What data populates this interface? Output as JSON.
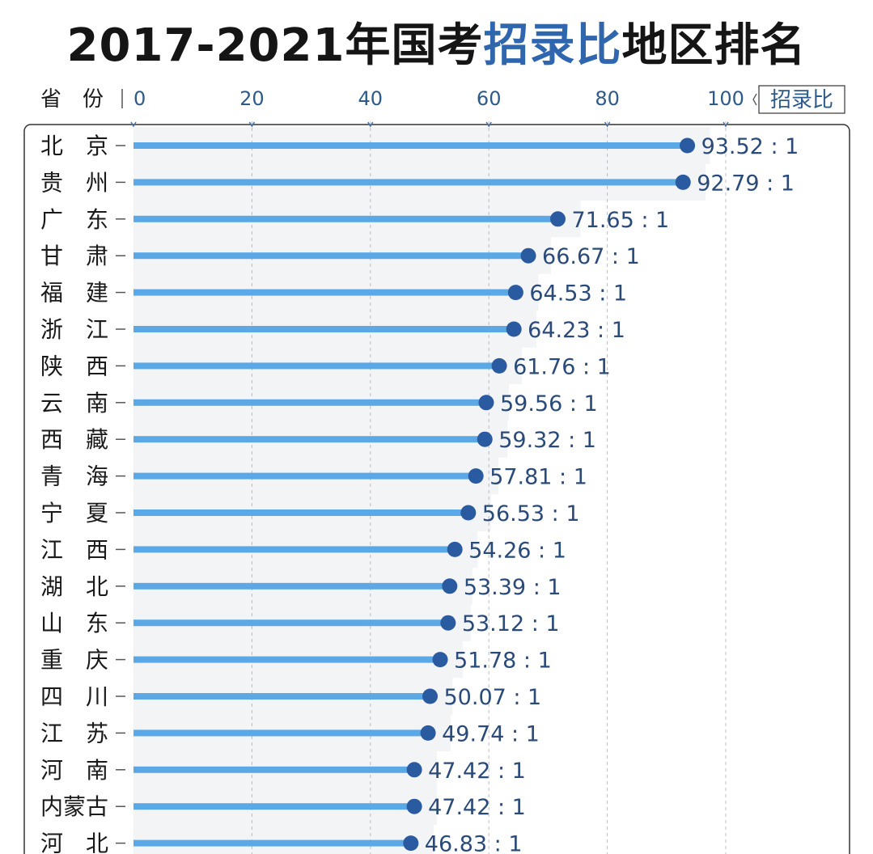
{
  "title": {
    "part1": "2017-2021年国考",
    "accent": "招录比",
    "part2": "地区排名",
    "accent_color": "#2f66ad"
  },
  "chart_data": {
    "type": "bar",
    "orientation": "horizontal",
    "axis_header_left": "省　份",
    "axis_header_right": "招录比",
    "ticks": [
      0,
      20,
      40,
      60,
      80,
      100
    ],
    "xlim": [
      0,
      100
    ],
    "grid": "vertical dashed",
    "colors": {
      "bar": "#5aa9e6",
      "dot": "#2a5aa0",
      "label": "#2a4a7a"
    },
    "categories": [
      "北　京",
      "贵　州",
      "广　东",
      "甘　肃",
      "福　建",
      "浙　江",
      "陕　西",
      "云　南",
      "西　藏",
      "青　海",
      "宁　夏",
      "江　西",
      "湖　北",
      "山　东",
      "重　庆",
      "四　川",
      "江　苏",
      "河　南",
      "内蒙古",
      "河　北"
    ],
    "values": [
      93.52,
      92.79,
      71.65,
      66.67,
      64.53,
      64.23,
      61.76,
      59.56,
      59.32,
      57.81,
      56.53,
      54.26,
      53.39,
      53.12,
      51.78,
      50.07,
      49.74,
      47.42,
      47.42,
      46.83
    ],
    "value_labels": [
      "93.52 : 1",
      "92.79 : 1",
      "71.65 : 1",
      "66.67 : 1",
      "64.53 : 1",
      "64.23 : 1",
      "61.76 : 1",
      "59.56 : 1",
      "59.32 : 1",
      "57.81 : 1",
      "56.53 : 1",
      "54.26 : 1",
      "53.39 : 1",
      "53.12 : 1",
      "51.78 : 1",
      "50.07 : 1",
      "49.74 : 1",
      "47.42 : 1",
      "47.42 : 1",
      "46.83 : 1"
    ]
  }
}
